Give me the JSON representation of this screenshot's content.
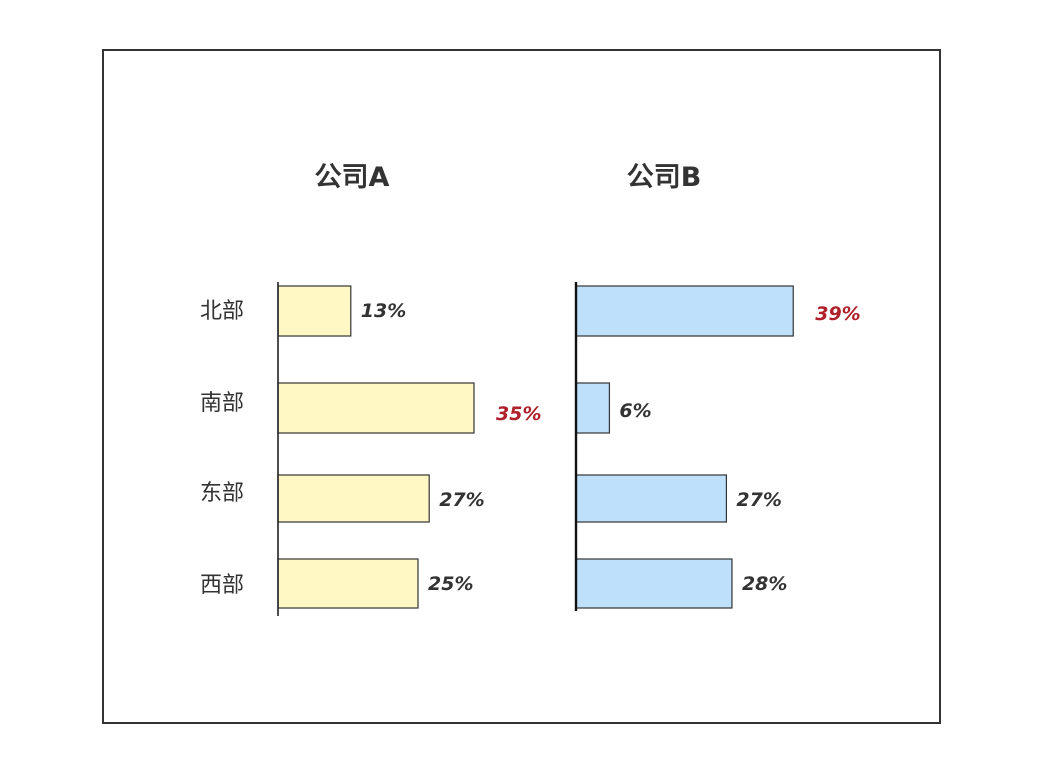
{
  "chart_data": {
    "type": "bar",
    "orientation": "horizontal",
    "categories": [
      "北部",
      "南部",
      "东部",
      "西部"
    ],
    "panels": [
      {
        "title": "公司A",
        "values": [
          13,
          35,
          27,
          25
        ],
        "labels": [
          "13%",
          "35%",
          "27%",
          "25%"
        ],
        "xlim": [
          0,
          40
        ],
        "color": "#fff8c4",
        "highlight_index": 1
      },
      {
        "title": "公司B",
        "values": [
          39,
          6,
          27,
          28
        ],
        "labels": [
          "39%",
          "6%",
          "27%",
          "28%"
        ],
        "xlim": [
          0,
          40
        ],
        "color": "#bee0fa",
        "highlight_index": 0
      }
    ],
    "colors": {
      "text": "#333333",
      "highlight": "#b0202a",
      "outline": "#333333"
    },
    "grid": false,
    "legend": "none"
  }
}
